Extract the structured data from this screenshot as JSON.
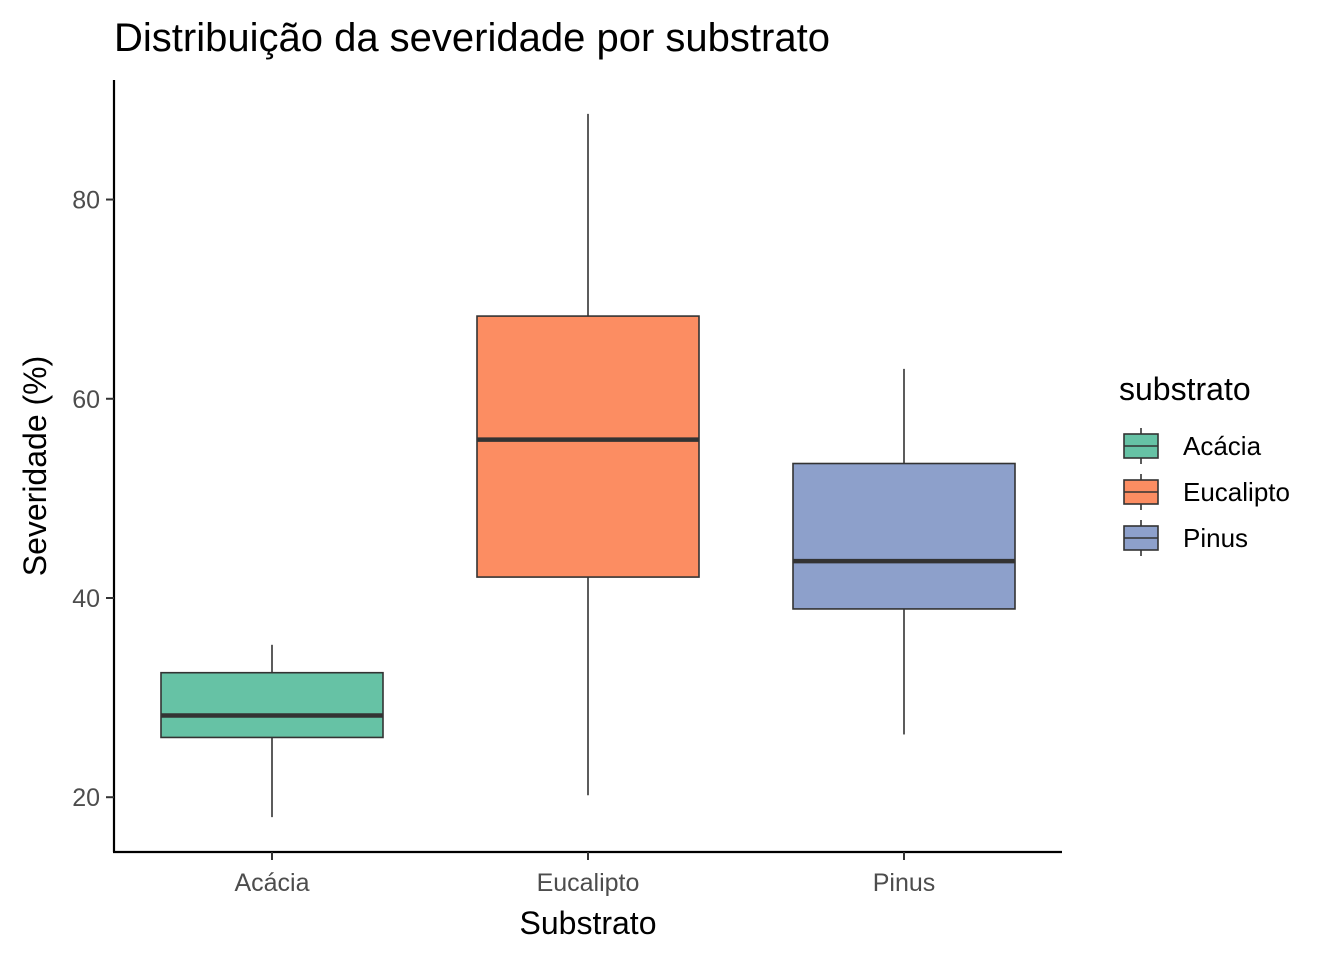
{
  "chart_data": {
    "type": "boxplot",
    "title": "Distribuição da severidade por substrato",
    "xlabel": "Substrato",
    "ylabel": "Severidade (%)",
    "categories": [
      "Acácia",
      "Eucalipto",
      "Pinus"
    ],
    "ylim": [
      14.5,
      92
    ],
    "yticks": [
      20,
      40,
      60,
      80
    ],
    "grid": false,
    "boxes": [
      {
        "category": "Acácia",
        "min": 18,
        "q1": 26,
        "median": 28.2,
        "q3": 32.5,
        "max": 35.3,
        "color": "#66c2a5"
      },
      {
        "category": "Eucalipto",
        "min": 20.2,
        "q1": 42.1,
        "median": 55.9,
        "q3": 68.3,
        "max": 88.6,
        "color": "#fc8d62"
      },
      {
        "category": "Pinus",
        "min": 26.3,
        "q1": 38.9,
        "median": 43.7,
        "q3": 53.5,
        "max": 63,
        "color": "#8da0cb"
      }
    ],
    "legend": {
      "title": "substrato",
      "position": "right",
      "entries": [
        "Acácia",
        "Eucalipto",
        "Pinus"
      ]
    }
  }
}
